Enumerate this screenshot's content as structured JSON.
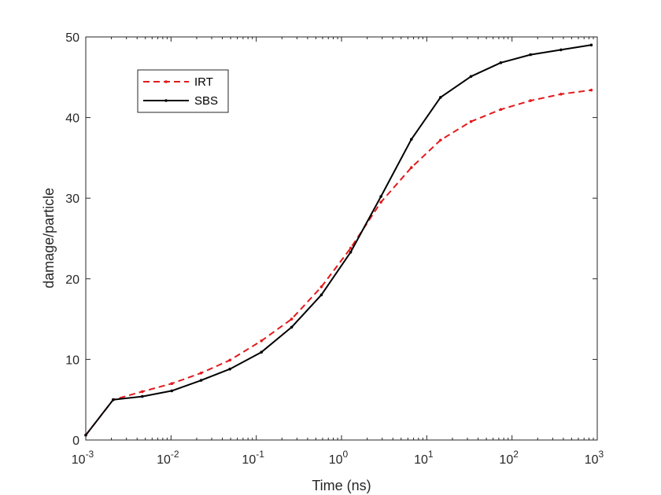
{
  "chart_data": {
    "type": "line",
    "title": "",
    "xlabel": "Time (ns)",
    "ylabel": "damage/particle",
    "x_scale": "log",
    "xlim": [
      0.001,
      1000
    ],
    "ylim": [
      0,
      50
    ],
    "x_ticks": [
      {
        "value": 0.001,
        "base": "10",
        "exp": "-3"
      },
      {
        "value": 0.01,
        "base": "10",
        "exp": "-2"
      },
      {
        "value": 0.1,
        "base": "10",
        "exp": "-1"
      },
      {
        "value": 1,
        "base": "10",
        "exp": "0"
      },
      {
        "value": 10,
        "base": "10",
        "exp": "1"
      },
      {
        "value": 100,
        "base": "10",
        "exp": "2"
      },
      {
        "value": 1000,
        "base": "10",
        "exp": "3"
      }
    ],
    "y_ticks": [
      0,
      10,
      20,
      30,
      40,
      50
    ],
    "legend_position": "top-left",
    "x": [
      0.001,
      0.0021,
      0.0046,
      0.0102,
      0.0225,
      0.049,
      0.115,
      0.26,
      0.58,
      1.28,
      2.9,
      6.6,
      14.5,
      33,
      74,
      165,
      375,
      850
    ],
    "series": [
      {
        "name": "IRT",
        "color": "#e31a1c",
        "dash": "dashed",
        "values": [
          0.6,
          5.0,
          6.0,
          7.0,
          8.3,
          9.9,
          12.3,
          15.0,
          19.0,
          23.8,
          29.5,
          33.8,
          37.2,
          39.5,
          41.0,
          42.1,
          42.9,
          43.4
        ]
      },
      {
        "name": "SBS",
        "color": "#000000",
        "dash": "solid",
        "values": [
          0.6,
          5.0,
          5.4,
          6.1,
          7.4,
          8.8,
          10.9,
          14.0,
          18.0,
          23.3,
          30.2,
          37.3,
          42.5,
          45.1,
          46.8,
          47.8,
          48.4,
          49.0
        ]
      }
    ]
  }
}
